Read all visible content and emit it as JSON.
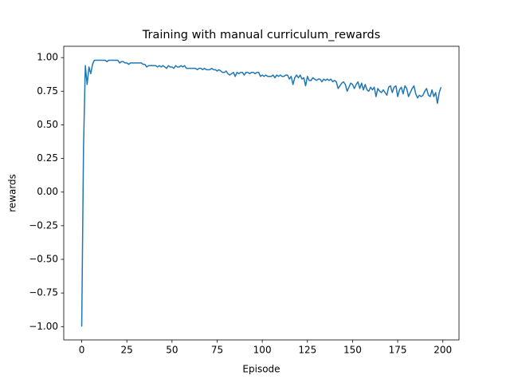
{
  "chart_data": {
    "type": "line",
    "title": "Training with manual curriculum_rewards",
    "x_label": "Episode",
    "y_label": "rewards",
    "color": "#1f77b4",
    "x": [
      0,
      1,
      2,
      3,
      4,
      5,
      6,
      7,
      8,
      9,
      10,
      11,
      12,
      13,
      14,
      15,
      16,
      17,
      18,
      19,
      20,
      21,
      22,
      23,
      24,
      25,
      26,
      27,
      28,
      29,
      30,
      31,
      32,
      33,
      34,
      35,
      36,
      37,
      38,
      39,
      40,
      41,
      42,
      43,
      44,
      45,
      46,
      47,
      48,
      49,
      50,
      51,
      52,
      53,
      54,
      55,
      56,
      57,
      58,
      59,
      60,
      61,
      62,
      63,
      64,
      65,
      66,
      67,
      68,
      69,
      70,
      71,
      72,
      73,
      74,
      75,
      76,
      77,
      78,
      79,
      80,
      81,
      82,
      83,
      84,
      85,
      86,
      87,
      88,
      89,
      90,
      91,
      92,
      93,
      94,
      95,
      96,
      97,
      98,
      99,
      100,
      101,
      102,
      103,
      104,
      105,
      106,
      107,
      108,
      109,
      110,
      111,
      112,
      113,
      114,
      115,
      116,
      117,
      118,
      119,
      120,
      121,
      122,
      123,
      124,
      125,
      126,
      127,
      128,
      129,
      130,
      131,
      132,
      133,
      134,
      135,
      136,
      137,
      138,
      139,
      140,
      141,
      142,
      143,
      144,
      145,
      146,
      147,
      148,
      149,
      150,
      151,
      152,
      153,
      154,
      155,
      156,
      157,
      158,
      159,
      160,
      161,
      162,
      163,
      164,
      165,
      166,
      167,
      168,
      169,
      170,
      171,
      172,
      173,
      174,
      175,
      176,
      177,
      178,
      179,
      180,
      181,
      182,
      183,
      184,
      185,
      186,
      187,
      188,
      189,
      190,
      191,
      192,
      193,
      194,
      195,
      196,
      197,
      198,
      199
    ],
    "values": [
      -1.0,
      0.33,
      0.94,
      0.8,
      0.93,
      0.88,
      0.95,
      0.98,
      0.98,
      0.98,
      0.98,
      0.98,
      0.98,
      0.98,
      0.97,
      0.98,
      0.98,
      0.98,
      0.98,
      0.98,
      0.98,
      0.96,
      0.97,
      0.97,
      0.96,
      0.96,
      0.95,
      0.96,
      0.96,
      0.96,
      0.96,
      0.96,
      0.96,
      0.96,
      0.95,
      0.95,
      0.93,
      0.94,
      0.94,
      0.94,
      0.94,
      0.94,
      0.93,
      0.94,
      0.93,
      0.94,
      0.93,
      0.92,
      0.94,
      0.93,
      0.93,
      0.92,
      0.94,
      0.93,
      0.93,
      0.94,
      0.93,
      0.94,
      0.92,
      0.92,
      0.92,
      0.92,
      0.92,
      0.92,
      0.91,
      0.92,
      0.92,
      0.91,
      0.92,
      0.91,
      0.91,
      0.91,
      0.92,
      0.91,
      0.91,
      0.9,
      0.91,
      0.9,
      0.89,
      0.89,
      0.9,
      0.88,
      0.87,
      0.88,
      0.89,
      0.86,
      0.89,
      0.88,
      0.89,
      0.89,
      0.87,
      0.89,
      0.89,
      0.88,
      0.89,
      0.89,
      0.88,
      0.89,
      0.89,
      0.86,
      0.87,
      0.86,
      0.87,
      0.86,
      0.86,
      0.86,
      0.87,
      0.85,
      0.87,
      0.86,
      0.87,
      0.86,
      0.86,
      0.87,
      0.87,
      0.84,
      0.86,
      0.8,
      0.85,
      0.87,
      0.85,
      0.87,
      0.84,
      0.85,
      0.79,
      0.86,
      0.83,
      0.83,
      0.85,
      0.84,
      0.83,
      0.84,
      0.84,
      0.82,
      0.84,
      0.83,
      0.84,
      0.83,
      0.84,
      0.82,
      0.83,
      0.82,
      0.77,
      0.79,
      0.81,
      0.82,
      0.8,
      0.75,
      0.78,
      0.81,
      0.8,
      0.77,
      0.8,
      0.82,
      0.77,
      0.81,
      0.76,
      0.8,
      0.76,
      0.75,
      0.78,
      0.76,
      0.78,
      0.71,
      0.77,
      0.75,
      0.74,
      0.76,
      0.74,
      0.72,
      0.78,
      0.79,
      0.74,
      0.78,
      0.79,
      0.71,
      0.76,
      0.78,
      0.73,
      0.79,
      0.77,
      0.71,
      0.74,
      0.77,
      0.79,
      0.73,
      0.7,
      0.72,
      0.71,
      0.72,
      0.75,
      0.77,
      0.72,
      0.71,
      0.76,
      0.71,
      0.74,
      0.66,
      0.74,
      0.78
    ],
    "xlim": [
      -9.95,
      208.95
    ],
    "xticks": [
      0,
      25,
      50,
      75,
      100,
      125,
      150,
      175,
      200
    ],
    "ylim": [
      -1.099,
      1.084
    ],
    "yticks": [
      {
        "value": -1,
        "label": "−1.00"
      },
      {
        "value": -0.75,
        "label": "−0.75"
      },
      {
        "value": -0.5,
        "label": "−0.50"
      },
      {
        "value": -0.25,
        "label": "−0.25"
      },
      {
        "value": 0,
        "label": "0.00"
      },
      {
        "value": 0.25,
        "label": "0.25"
      },
      {
        "value": 0.5,
        "label": "0.50"
      },
      {
        "value": 0.75,
        "label": "0.75"
      },
      {
        "value": 1,
        "label": "1.00"
      }
    ]
  }
}
